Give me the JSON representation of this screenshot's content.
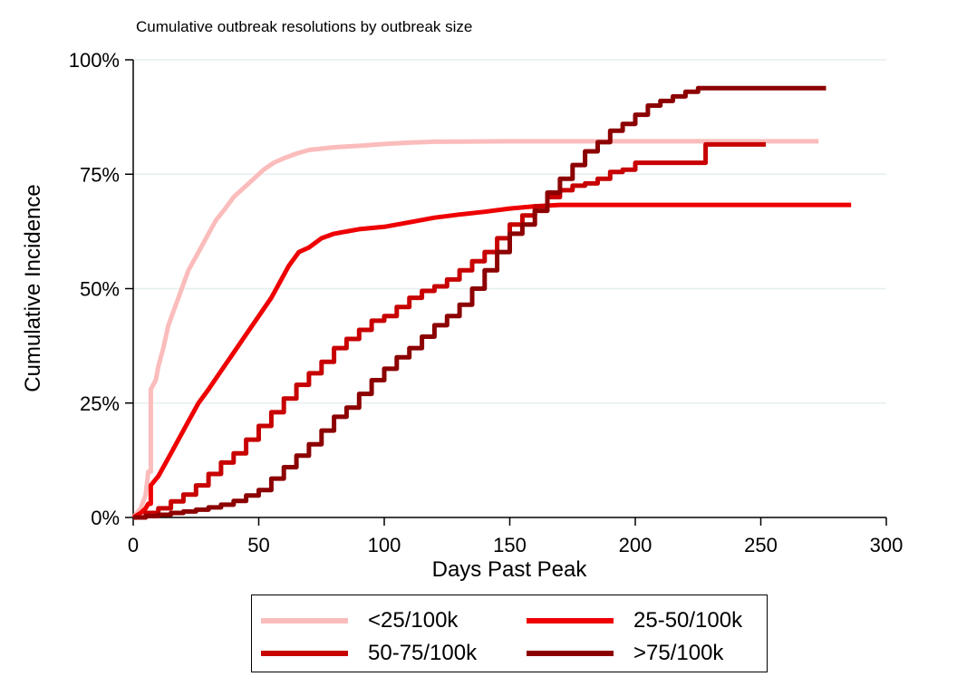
{
  "chart_data": {
    "type": "line",
    "title": "Cumulative outbreak resolutions by outbreak size",
    "xlabel": "Days Past Peak",
    "ylabel": "Cumulative Incidence",
    "xlim": [
      0,
      300
    ],
    "ylim": [
      0,
      100
    ],
    "xticks": [
      0,
      50,
      100,
      150,
      200,
      250,
      300
    ],
    "yticks": [
      0,
      25,
      50,
      75,
      100
    ],
    "yticklabels": [
      "0%",
      "25%",
      "50%",
      "75%",
      "100%"
    ],
    "grid": "horizontal",
    "legend_position": "bottom",
    "series": [
      {
        "name": "<25/100k",
        "color": "#fbbcbc",
        "step": false,
        "points": [
          [
            0,
            0
          ],
          [
            3,
            2
          ],
          [
            5,
            5
          ],
          [
            6,
            10
          ],
          [
            7,
            10
          ],
          [
            7,
            28
          ],
          [
            9,
            30
          ],
          [
            10,
            33
          ],
          [
            12,
            37
          ],
          [
            14,
            42
          ],
          [
            16,
            45
          ],
          [
            18,
            48
          ],
          [
            20,
            51
          ],
          [
            22,
            54
          ],
          [
            25,
            57
          ],
          [
            28,
            60
          ],
          [
            30,
            62
          ],
          [
            33,
            65
          ],
          [
            36,
            67
          ],
          [
            40,
            70
          ],
          [
            44,
            72
          ],
          [
            48,
            74
          ],
          [
            52,
            76
          ],
          [
            56,
            77.5
          ],
          [
            60,
            78.5
          ],
          [
            65,
            79.5
          ],
          [
            70,
            80.3
          ],
          [
            80,
            80.9
          ],
          [
            90,
            81.2
          ],
          [
            100,
            81.6
          ],
          [
            110,
            81.9
          ],
          [
            120,
            82.1
          ],
          [
            150,
            82.2
          ],
          [
            200,
            82.2
          ],
          [
            273,
            82.2
          ]
        ]
      },
      {
        "name": "25-50/100k",
        "color": "#ee0000",
        "step": false,
        "points": [
          [
            0,
            0
          ],
          [
            3,
            1
          ],
          [
            5,
            2
          ],
          [
            6,
            3
          ],
          [
            7,
            3
          ],
          [
            7,
            7
          ],
          [
            10,
            9
          ],
          [
            14,
            13
          ],
          [
            18,
            17
          ],
          [
            22,
            21
          ],
          [
            26,
            25
          ],
          [
            30,
            28
          ],
          [
            35,
            32
          ],
          [
            40,
            36
          ],
          [
            45,
            40
          ],
          [
            50,
            44
          ],
          [
            55,
            48
          ],
          [
            58,
            51
          ],
          [
            62,
            55
          ],
          [
            66,
            58
          ],
          [
            70,
            59
          ],
          [
            75,
            61
          ],
          [
            80,
            62
          ],
          [
            90,
            63
          ],
          [
            100,
            63.5
          ],
          [
            110,
            64.5
          ],
          [
            120,
            65.5
          ],
          [
            130,
            66.2
          ],
          [
            140,
            66.8
          ],
          [
            150,
            67.5
          ],
          [
            160,
            68
          ],
          [
            170,
            68.3
          ],
          [
            180,
            68.3
          ],
          [
            286,
            68.3
          ]
        ]
      },
      {
        "name": "50-75/100k",
        "color": "#c80000",
        "step": true,
        "points": [
          [
            0,
            0
          ],
          [
            5,
            1
          ],
          [
            10,
            2
          ],
          [
            15,
            3.5
          ],
          [
            20,
            5
          ],
          [
            25,
            7
          ],
          [
            30,
            9.5
          ],
          [
            35,
            12
          ],
          [
            40,
            14
          ],
          [
            45,
            17
          ],
          [
            50,
            20
          ],
          [
            55,
            23
          ],
          [
            60,
            26
          ],
          [
            65,
            29
          ],
          [
            70,
            31.5
          ],
          [
            75,
            34
          ],
          [
            80,
            37
          ],
          [
            85,
            39
          ],
          [
            90,
            41
          ],
          [
            95,
            43
          ],
          [
            100,
            44
          ],
          [
            105,
            46
          ],
          [
            110,
            48
          ],
          [
            115,
            49.5
          ],
          [
            120,
            50.5
          ],
          [
            125,
            52
          ],
          [
            130,
            54
          ],
          [
            135,
            56
          ],
          [
            140,
            58
          ],
          [
            145,
            61
          ],
          [
            150,
            64
          ],
          [
            155,
            66
          ],
          [
            160,
            68
          ],
          [
            165,
            70
          ],
          [
            170,
            71.5
          ],
          [
            175,
            72.5
          ],
          [
            180,
            73
          ],
          [
            185,
            74
          ],
          [
            190,
            75.5
          ],
          [
            195,
            76
          ],
          [
            200,
            77.5
          ],
          [
            228,
            77.5
          ],
          [
            228,
            81.5
          ],
          [
            252,
            81.5
          ]
        ]
      },
      {
        "name": ">75/100k",
        "color": "#8c0000",
        "step": true,
        "points": [
          [
            0,
            0
          ],
          [
            5,
            0.3
          ],
          [
            10,
            0.6
          ],
          [
            15,
            1
          ],
          [
            20,
            1.3
          ],
          [
            25,
            1.7
          ],
          [
            30,
            2.2
          ],
          [
            35,
            2.8
          ],
          [
            40,
            3.6
          ],
          [
            45,
            4.8
          ],
          [
            50,
            6
          ],
          [
            55,
            8.5
          ],
          [
            60,
            11
          ],
          [
            65,
            13.5
          ],
          [
            70,
            16
          ],
          [
            75,
            19
          ],
          [
            80,
            22
          ],
          [
            85,
            24
          ],
          [
            90,
            27
          ],
          [
            95,
            30
          ],
          [
            100,
            32.5
          ],
          [
            105,
            35
          ],
          [
            110,
            37
          ],
          [
            115,
            39.5
          ],
          [
            120,
            42
          ],
          [
            125,
            44
          ],
          [
            130,
            46.5
          ],
          [
            135,
            50
          ],
          [
            140,
            54
          ],
          [
            145,
            58
          ],
          [
            150,
            62
          ],
          [
            155,
            64
          ],
          [
            160,
            67
          ],
          [
            165,
            71
          ],
          [
            170,
            74
          ],
          [
            175,
            77
          ],
          [
            180,
            80
          ],
          [
            185,
            82
          ],
          [
            190,
            84.5
          ],
          [
            195,
            86
          ],
          [
            200,
            88
          ],
          [
            205,
            90
          ],
          [
            210,
            91
          ],
          [
            215,
            92
          ],
          [
            220,
            93
          ],
          [
            225,
            93.8
          ],
          [
            276,
            93.8
          ]
        ]
      }
    ]
  }
}
